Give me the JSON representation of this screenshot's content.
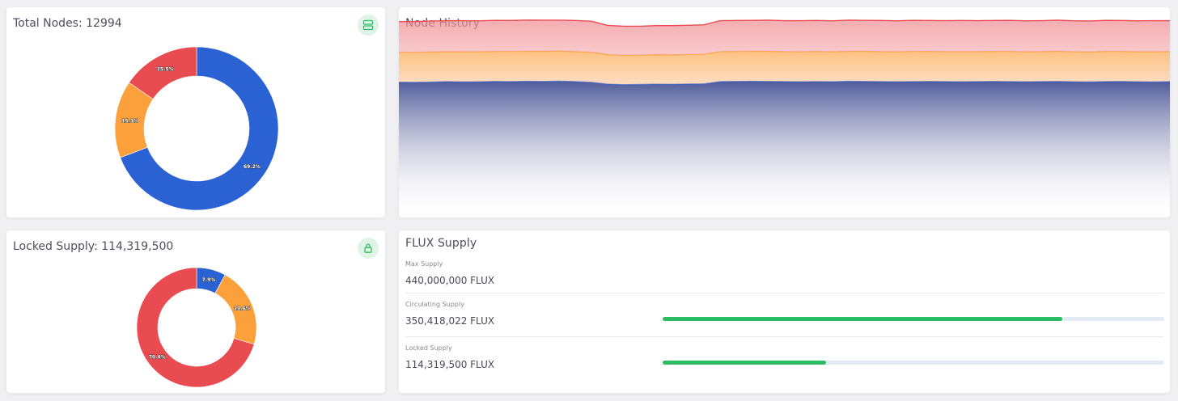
{
  "total_nodes": {
    "title": "Total Nodes: 12994",
    "icon": "server-icon"
  },
  "locked_supply_card": {
    "title": "Locked Supply: 114,319,500",
    "icon": "lock-icon"
  },
  "node_history": {
    "title": "Node History"
  },
  "flux_supply": {
    "title": "FLUX Supply",
    "rows": [
      {
        "label": "Max Supply",
        "value": "440,000,000 FLUX"
      },
      {
        "label": "Circulating Supply",
        "value": "350,418,022 FLUX",
        "progress": 0.796
      },
      {
        "label": "Locked Supply",
        "value": "114,319,500 FLUX",
        "progress": 0.326
      }
    ]
  },
  "colors": {
    "blue": "#2a62d4",
    "orange": "#fca03c",
    "red": "#e84c50",
    "green": "#2cbd63"
  },
  "chart_data": [
    {
      "type": "pie",
      "variant": "donut",
      "title": "Total Nodes: 12994",
      "slices": [
        {
          "value": 69.2,
          "label": "69.2%",
          "color": "#2a62d4"
        },
        {
          "value": 15.3,
          "label": "15.3%",
          "color": "#fca03c"
        },
        {
          "value": 15.5,
          "label": "15.5%",
          "color": "#e84c50"
        }
      ]
    },
    {
      "type": "pie",
      "variant": "donut",
      "title": "Locked Supply: 114,319,500",
      "slices": [
        {
          "value": 7.9,
          "label": "7.9%",
          "color": "#2a62d4"
        },
        {
          "value": 21.6,
          "label": "21.6%",
          "color": "#fca03c"
        },
        {
          "value": 70.4,
          "label": "70.4%",
          "color": "#e84c50"
        }
      ]
    },
    {
      "type": "area",
      "stacked": true,
      "title": "Node History",
      "grid": false,
      "ylim": [
        0,
        14000
      ],
      "x": [
        0,
        1,
        2,
        3,
        4,
        5,
        6,
        7,
        8,
        9,
        10,
        11,
        12,
        13,
        14,
        15,
        16,
        17,
        18,
        19,
        20,
        21,
        22,
        23,
        24,
        25,
        26,
        27,
        28,
        29,
        30,
        31,
        32,
        33,
        34,
        35,
        36,
        37,
        38,
        39,
        40,
        41,
        42,
        43,
        44,
        45,
        46,
        47,
        48
      ],
      "series": [
        {
          "color": "#2a62d4",
          "values": [
            9010,
            9000,
            9020,
            9050,
            9030,
            9040,
            9060,
            9050,
            9070,
            9060,
            9080,
            9050,
            9000,
            8880,
            8850,
            8860,
            8880,
            8870,
            8890,
            8900,
            9050,
            9060,
            9070,
            9060,
            9050,
            9040,
            9050,
            9040,
            9070,
            9060,
            9050,
            9040,
            9050,
            9060,
            9050,
            9040,
            9050,
            9060,
            9050,
            9040,
            9050,
            9060,
            9040,
            9030,
            9050,
            9060,
            9040,
            9030,
            9050
          ]
        },
        {
          "color": "#fca03c",
          "values": [
            2000,
            2000,
            2010,
            2000,
            2010,
            2000,
            2000,
            2010,
            2000,
            2010,
            2000,
            2000,
            2010,
            1970,
            1960,
            1960,
            1970,
            1970,
            1970,
            1980,
            2000,
            2000,
            2000,
            2010,
            2000,
            2000,
            2010,
            2000,
            2000,
            2010,
            2000,
            2000,
            2010,
            2000,
            2000,
            2010,
            2000,
            2000,
            2010,
            2000,
            2000,
            2010,
            2000,
            2000,
            2010,
            2000,
            2000,
            2010,
            2000
          ]
        },
        {
          "color": "#e84c50",
          "values": [
            2040,
            2050,
            2060,
            2060,
            2070,
            2060,
            2070,
            2060,
            2080,
            2070,
            2060,
            2070,
            2060,
            1940,
            1930,
            1920,
            1930,
            1940,
            1940,
            1950,
            2060,
            2060,
            2060,
            2070,
            2060,
            2070,
            2060,
            2060,
            2070,
            2060,
            2070,
            2060,
            2070,
            2060,
            2060,
            2070,
            2060,
            2060,
            2070,
            2060,
            2060,
            2070,
            2060,
            2060,
            2070,
            2060,
            2060,
            2070,
            2060
          ]
        }
      ]
    }
  ]
}
